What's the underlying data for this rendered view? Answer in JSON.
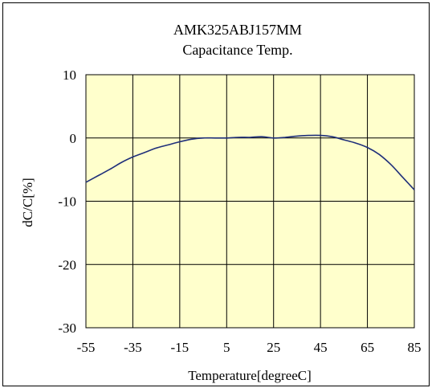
{
  "chart_data": {
    "type": "line",
    "title": "AMK325ABJ157MM",
    "subtitle": "Capacitance Temp.",
    "xlabel": "Temperature[degreeC]",
    "ylabel": "dC/C[%]",
    "xlim": [
      -55,
      85
    ],
    "ylim": [
      -30,
      10
    ],
    "x_ticks": [
      -55,
      -35,
      -15,
      5,
      25,
      45,
      65,
      85
    ],
    "y_ticks": [
      10,
      0,
      -10,
      -20,
      -30
    ],
    "grid": true,
    "plot_background": "#FFFFCC",
    "series": [
      {
        "color": "#1F2F7A",
        "x": [
          -55,
          -50,
          -45,
          -40,
          -35,
          -30,
          -25,
          -20,
          -15,
          -10,
          -5,
          0,
          5,
          10,
          15,
          20,
          25,
          30,
          35,
          40,
          45,
          50,
          55,
          60,
          65,
          70,
          75,
          80,
          85
        ],
        "y": [
          -7.0,
          -6.0,
          -5.0,
          -3.9,
          -3.0,
          -2.3,
          -1.6,
          -1.1,
          -0.6,
          -0.2,
          0.0,
          0.0,
          0.0,
          0.1,
          0.1,
          0.2,
          0.0,
          0.1,
          0.3,
          0.4,
          0.4,
          0.2,
          -0.3,
          -0.8,
          -1.5,
          -2.6,
          -4.2,
          -6.2,
          -8.2
        ]
      }
    ]
  }
}
